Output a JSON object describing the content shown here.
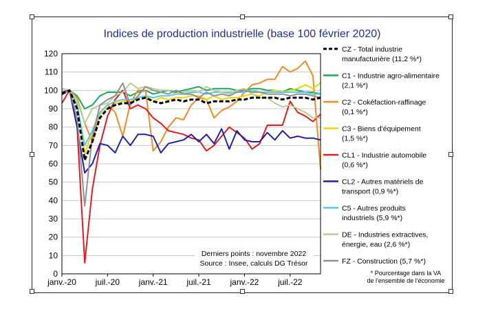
{
  "chart_data": {
    "type": "line",
    "title": "Indices de production industrielle (base 100 février 2020)",
    "xlabel": "",
    "ylabel": "",
    "ylim": [
      0,
      120
    ],
    "yticks": [
      0,
      10,
      20,
      30,
      40,
      50,
      60,
      70,
      80,
      90,
      100,
      110,
      120
    ],
    "x": [
      "2020-01",
      "2020-02",
      "2020-03",
      "2020-04",
      "2020-05",
      "2020-06",
      "2020-07",
      "2020-08",
      "2020-09",
      "2020-10",
      "2020-11",
      "2020-12",
      "2021-01",
      "2021-02",
      "2021-03",
      "2021-04",
      "2021-05",
      "2021-06",
      "2021-07",
      "2021-08",
      "2021-09",
      "2021-10",
      "2021-11",
      "2021-12",
      "2022-01",
      "2022-02",
      "2022-03",
      "2022-04",
      "2022-05",
      "2022-06",
      "2022-07",
      "2022-08",
      "2022-09",
      "2022-10",
      "2022-11"
    ],
    "xtick_labels": [
      {
        "x": "2020-01",
        "label": "janv.-20"
      },
      {
        "x": "2020-07",
        "label": "juil.-20"
      },
      {
        "x": "2021-01",
        "label": "janv.-21"
      },
      {
        "x": "2021-07",
        "label": "juil.-21"
      },
      {
        "x": "2022-01",
        "label": "janv.-22"
      },
      {
        "x": "2022-07",
        "label": "juil.-22"
      }
    ],
    "grid": true,
    "legend_position": "right",
    "series": [
      {
        "name": "C1 - Industrie agro-alimentaire (2,1 %*)",
        "color": "#1aaa55",
        "style": "solid",
        "values": [
          99,
          100,
          97,
          90,
          92,
          97,
          99,
          99,
          99,
          97,
          99,
          100,
          98,
          99,
          100,
          99,
          100,
          101,
          102,
          100,
          101,
          101,
          101,
          100,
          100,
          101,
          101,
          100,
          100,
          99,
          101,
          100,
          99,
          99,
          98
        ]
      },
      {
        "name": "C2 - Cokéfaction-raffinage (0,1 %*)",
        "color": "#f08a24",
        "style": "solid",
        "values": [
          98,
          100,
          96,
          82,
          72,
          88,
          92,
          88,
          75,
          93,
          100,
          100,
          67,
          72,
          80,
          85,
          84,
          92,
          96,
          95,
          85,
          89,
          91,
          94,
          99,
          103,
          104,
          106,
          106,
          113,
          110,
          112,
          116,
          108,
          57
        ]
      },
      {
        "name": "C3 - Biens d'équipement (1,5 %*)",
        "color": "#f2d400",
        "style": "solid",
        "values": [
          98,
          100,
          94,
          65,
          78,
          87,
          90,
          93,
          94,
          94,
          96,
          97,
          94,
          96,
          95,
          96,
          96,
          97,
          97,
          95,
          97,
          95,
          96,
          96,
          97,
          98,
          97,
          99,
          100,
          99,
          100,
          101,
          103,
          101,
          104
        ]
      },
      {
        "name": "CL1 - Industrie automobile (0,6 %*)",
        "color": "#e41a1c",
        "style": "solid",
        "values": [
          93,
          100,
          80,
          6,
          46,
          70,
          86,
          95,
          100,
          90,
          92,
          90,
          85,
          82,
          78,
          77,
          76,
          74,
          73,
          67,
          70,
          75,
          80,
          77,
          74,
          68,
          71,
          81,
          81,
          81,
          94,
          88,
          86,
          83,
          87
        ]
      },
      {
        "name": "CL2 - Autres matériels de transport (0,9 %*)",
        "color": "#1f1fa8",
        "style": "solid",
        "values": [
          99,
          100,
          80,
          55,
          60,
          71,
          70,
          66,
          75,
          70,
          76,
          76,
          75,
          66,
          71,
          72,
          73,
          76,
          72,
          76,
          71,
          79,
          68,
          78,
          73,
          72,
          72,
          77,
          73,
          78,
          74,
          75,
          74,
          74,
          73
        ]
      },
      {
        "name": "C5 - Autres produits industriels (5,9 %*)",
        "color": "#55c8f0",
        "style": "solid",
        "values": [
          98,
          100,
          92,
          70,
          78,
          88,
          92,
          94,
          95,
          95,
          96,
          97,
          96,
          97,
          97,
          98,
          98,
          99,
          99,
          98,
          99,
          99,
          99,
          99,
          99,
          100,
          99,
          99,
          99,
          99,
          99,
          99,
          99,
          98,
          98
        ]
      },
      {
        "name": "DE - Industries extractives, énergie, eau (2,6 %*)",
        "color": "#b5cc94",
        "style": "solid",
        "values": [
          101,
          100,
          95,
          82,
          90,
          92,
          93,
          97,
          99,
          104,
          101,
          102,
          101,
          100,
          100,
          98,
          99,
          100,
          99,
          102,
          100,
          99,
          98,
          100,
          101,
          98,
          96,
          96,
          93,
          91,
          92,
          90,
          88,
          85,
          85
        ]
      },
      {
        "name": "FZ - Construction (5,7 %*)",
        "color": "#909090",
        "style": "solid",
        "values": [
          98,
          100,
          85,
          37,
          75,
          92,
          95,
          97,
          104,
          92,
          97,
          102,
          100,
          99,
          98,
          100,
          98,
          98,
          96,
          99,
          97,
          98,
          97,
          99,
          100,
          99,
          99,
          98,
          98,
          98,
          97,
          98,
          98,
          97,
          96
        ]
      },
      {
        "name": "CZ - Total industrie manufacturière (11,2 %*)",
        "color": "#000000",
        "style": "dashed",
        "values": [
          98,
          100,
          90,
          62,
          72,
          85,
          90,
          92,
          93,
          93,
          95,
          96,
          94,
          93,
          94,
          95,
          94,
          95,
          95,
          93,
          94,
          94,
          94,
          95,
          95,
          96,
          96,
          96,
          96,
          95,
          96,
          96,
          96,
          95,
          96
        ]
      }
    ],
    "legend": [
      {
        "label_line1": "CZ - Total industrie",
        "label_line2": "manufacturière (11,2 %*)",
        "color": "#000000",
        "style": "dashed"
      },
      {
        "label_line1": "C1 - Industrie agro-alimentaire",
        "label_line2": "(2,1 %*)",
        "color": "#1aaa55",
        "style": "solid"
      },
      {
        "label_line1": "C2 - Cokéfaction-raffinage",
        "label_line2": "(0,1 %*)",
        "color": "#f08a24",
        "style": "solid"
      },
      {
        "label_line1": "C3 - Biens d'équipement",
        "label_line2": "(1,5 %*)",
        "color": "#f2d400",
        "style": "solid"
      },
      {
        "label_line1": "CL1 - Industrie automobile",
        "label_line2": "(0,6 %*)",
        "color": "#e41a1c",
        "style": "solid"
      },
      {
        "label_line1": "CL2 - Autres matériels de",
        "label_line2": "transport (0,9 %*)",
        "color": "#1f1fa8",
        "style": "solid"
      },
      {
        "label_line1": "C5 - Autres produits",
        "label_line2": "industriels (5,9 %*)",
        "color": "#55c8f0",
        "style": "solid"
      },
      {
        "label_line1": "DE - Industries extractives,",
        "label_line2": "énergie, eau (2,6 %*)",
        "color": "#b5cc94",
        "style": "solid"
      },
      {
        "label_line1": "FZ - Construction (5,7 %*)",
        "label_line2": "",
        "color": "#909090",
        "style": "solid"
      }
    ],
    "annotations": {
      "last_points": "Derniers points : novembre 2022",
      "source": "Source : Insee, calculs DG Trésor"
    },
    "footnote_line1": "* Pourcentage dans la VA",
    "footnote_line2": "de l'ensemble de l'économie"
  }
}
